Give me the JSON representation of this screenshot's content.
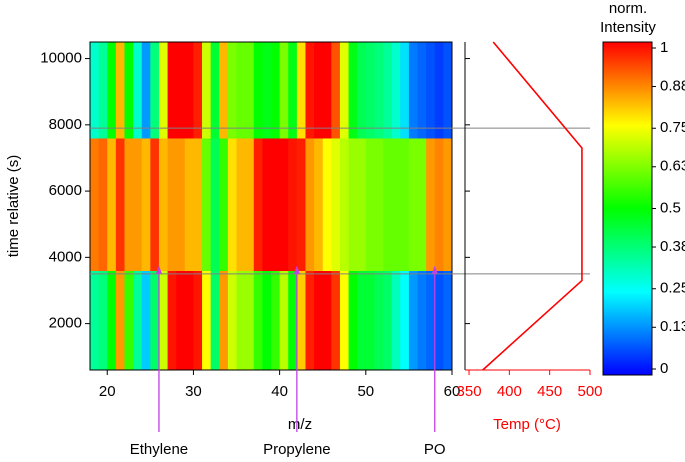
{
  "chart_data": [
    {
      "type": "heatmap",
      "xlabel": "m/z",
      "ylabel": "time relative (s)",
      "x_bins": [
        18,
        19,
        20,
        21,
        22,
        23,
        24,
        25,
        26,
        27,
        28,
        29,
        30,
        31,
        32,
        33,
        34,
        35,
        36,
        37,
        38,
        39,
        40,
        41,
        42,
        43,
        44,
        45,
        46,
        47,
        48,
        49,
        50,
        51,
        52,
        53,
        54,
        55,
        56,
        57,
        58,
        59,
        60
      ],
      "y_bins": [
        600,
        3600,
        7600,
        10500
      ],
      "values": [
        [
          0.35,
          0.38,
          0.5,
          0.85,
          0.55,
          0.35,
          0.2,
          0.4,
          0.7,
          0.98,
          1,
          1,
          0.98,
          0.75,
          0.4,
          0.85,
          0.7,
          0.65,
          0.65,
          0.55,
          0.5,
          0.55,
          0.68,
          0.5,
          0.8,
          0.97,
          1,
          1,
          0.95,
          0.75,
          0.5,
          0.45,
          0.45,
          0.42,
          0.4,
          0.32,
          0.25,
          0.15,
          0.12,
          0.1,
          0.08,
          0.1
        ],
        [
          0.88,
          0.9,
          0.82,
          0.95,
          0.85,
          0.85,
          0.82,
          0.95,
          0.82,
          0.85,
          0.85,
          0.82,
          0.82,
          0.6,
          0.42,
          0.55,
          0.78,
          0.82,
          0.82,
          0.97,
          1,
          1,
          1,
          0.98,
          0.97,
          0.85,
          0.82,
          0.75,
          0.72,
          0.68,
          0.65,
          0.65,
          0.62,
          0.62,
          0.6,
          0.6,
          0.6,
          0.62,
          0.62,
          0.85,
          0.87,
          0.85
        ],
        [
          0.3,
          0.35,
          0.5,
          0.82,
          0.5,
          0.3,
          0.15,
          0.38,
          0.72,
          1,
          1,
          1,
          0.97,
          0.7,
          0.45,
          0.82,
          0.62,
          0.6,
          0.6,
          0.5,
          0.48,
          0.5,
          0.62,
          0.48,
          0.78,
          0.98,
          1,
          1,
          0.92,
          0.72,
          0.48,
          0.42,
          0.4,
          0.38,
          0.35,
          0.3,
          0.22,
          0.12,
          0.1,
          0.08,
          0.06,
          0.08
        ]
      ],
      "xlim": [
        18,
        60
      ],
      "xticks": [
        20,
        30,
        40,
        50,
        60
      ],
      "ylim": [
        600,
        10500
      ],
      "yticks": [
        2000,
        4000,
        6000,
        8000,
        10000
      ],
      "colormap": [
        "#0000ff",
        "#00ffff",
        "#00ff00",
        "#ffff00",
        "#ff0000"
      ],
      "colorbar": {
        "title": [
          "norm.",
          "Intensity"
        ],
        "lim": [
          0,
          1
        ],
        "ticks": [
          0,
          0.13,
          0.25,
          0.38,
          0.5,
          0.63,
          0.75,
          0.88,
          1
        ]
      },
      "hlines": [
        7900,
        3500
      ],
      "hline_color": "#808080",
      "annotations": [
        {
          "text": "Ethylene",
          "x": 26,
          "y": 3750
        },
        {
          "text": "Propylene",
          "x": 42,
          "y": 3750
        },
        {
          "text": "PO",
          "x": 58,
          "y": 3750
        }
      ],
      "annotation_color": "#c040e8"
    },
    {
      "type": "line",
      "xlabel": "Temp (°C)",
      "axis_color": "#ff0000",
      "series": [
        {
          "color": "#ff0000",
          "x": [
            367,
            490,
            490,
            380
          ],
          "y": [
            600,
            3300,
            7300,
            10500
          ]
        }
      ],
      "xlim": [
        345,
        500
      ],
      "xticks": [
        350,
        400,
        450,
        500
      ],
      "ylim": [
        600,
        10500
      ],
      "yticks": [
        2000,
        4000,
        6000,
        8000,
        10000
      ]
    }
  ]
}
